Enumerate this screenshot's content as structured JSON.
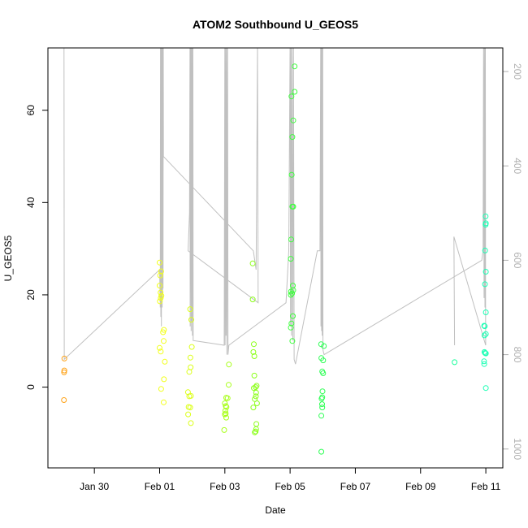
{
  "chart_data": {
    "type": "scatter",
    "title": "ATOM2 Southbound U_GEOS5",
    "xlabel": "Date",
    "ylabel": "U_GEOS5",
    "x_unit": "date",
    "xlim": [
      "2016-01-28T13:50",
      "2016-02-11T12:30"
    ],
    "ylim": [
      -17.5,
      73.5
    ],
    "x_ticks": [
      {
        "date": "2016-01-30",
        "label": "Jan 30"
      },
      {
        "date": "2016-02-01",
        "label": "Feb 01"
      },
      {
        "date": "2016-02-03",
        "label": "Feb 03"
      },
      {
        "date": "2016-02-05",
        "label": "Feb 05"
      },
      {
        "date": "2016-02-07",
        "label": "Feb 07"
      },
      {
        "date": "2016-02-09",
        "label": "Feb 09"
      },
      {
        "date": "2016-02-11",
        "label": "Feb 11"
      }
    ],
    "y_ticks": [
      0,
      20,
      40,
      60
    ],
    "y2_ticks": [
      200,
      400,
      600,
      800,
      1000
    ],
    "y2lim": [
      1040,
      150
    ],
    "y2_axis_color": "#b0b0b0",
    "pressure_trace_color": "#c0c0c0",
    "grid": false,
    "legend": "none",
    "color_encoding": "time gradient from orange to teal",
    "points": [
      {
        "x": "2016-01-29T01:55",
        "y": 6.2,
        "c": "#ffa41a"
      },
      {
        "x": "2016-01-29T01:55",
        "y": 3.6,
        "c": "#ffa41a"
      },
      {
        "x": "2016-01-29T01:45",
        "y": 3.2,
        "c": "#ffa41a"
      },
      {
        "x": "2016-01-29T01:35",
        "y": -2.8,
        "c": "#ffa41a"
      },
      {
        "x": "2016-02-01T00:00",
        "y": 27.0,
        "c": "#f2ff1a"
      },
      {
        "x": "2016-02-01T01:10",
        "y": 25.1,
        "c": "#f2ff1a"
      },
      {
        "x": "2016-02-01T00:25",
        "y": 24.2,
        "c": "#f2ff1a"
      },
      {
        "x": "2016-02-01T00:00",
        "y": 22.0,
        "c": "#f2ff1a"
      },
      {
        "x": "2016-02-01T00:45",
        "y": 20.5,
        "c": "#f2ff1a"
      },
      {
        "x": "2016-02-01T01:20",
        "y": 19.8,
        "c": "#f2ff1a"
      },
      {
        "x": "2016-02-01T00:50",
        "y": 19.3,
        "c": "#f2ff1a"
      },
      {
        "x": "2016-02-01T00:10",
        "y": 18.6,
        "c": "#f2ff1a"
      },
      {
        "x": "2016-02-01T03:10",
        "y": 12.4,
        "c": "#f2ff1a"
      },
      {
        "x": "2016-02-01T02:30",
        "y": 11.9,
        "c": "#f2ff1a"
      },
      {
        "x": "2016-02-01T03:00",
        "y": 10.0,
        "c": "#f2ff1a"
      },
      {
        "x": "2016-02-01T00:00",
        "y": 8.5,
        "c": "#f2ff1a"
      },
      {
        "x": "2016-02-01T00:50",
        "y": 7.7,
        "c": "#f2ff1a"
      },
      {
        "x": "2016-02-01T03:50",
        "y": 5.5,
        "c": "#f2ff1a"
      },
      {
        "x": "2016-02-01T03:10",
        "y": 1.7,
        "c": "#f2ff1a"
      },
      {
        "x": "2016-02-01T01:10",
        "y": -0.4,
        "c": "#f2ff1a"
      },
      {
        "x": "2016-02-01T03:00",
        "y": -3.3,
        "c": "#f2ff1a"
      },
      {
        "x": "2016-02-01T22:30",
        "y": 16.9,
        "c": "#dcff1a"
      },
      {
        "x": "2016-02-01T23:20",
        "y": 14.6,
        "c": "#dcff1a"
      },
      {
        "x": "2016-02-01T23:40",
        "y": 8.7,
        "c": "#dcff1a"
      },
      {
        "x": "2016-02-01T22:40",
        "y": 6.4,
        "c": "#dcff1a"
      },
      {
        "x": "2016-02-01T22:50",
        "y": 4.3,
        "c": "#dcff1a"
      },
      {
        "x": "2016-02-01T21:50",
        "y": 3.3,
        "c": "#dcff1a"
      },
      {
        "x": "2016-02-01T20:50",
        "y": -1.1,
        "c": "#dcff1a"
      },
      {
        "x": "2016-02-01T23:00",
        "y": -1.9,
        "c": "#dcff1a"
      },
      {
        "x": "2016-02-01T21:50",
        "y": -2.0,
        "c": "#dcff1a"
      },
      {
        "x": "2016-02-01T21:20",
        "y": -4.3,
        "c": "#dcff1a"
      },
      {
        "x": "2016-02-01T22:30",
        "y": -4.4,
        "c": "#dcff1a"
      },
      {
        "x": "2016-02-01T21:00",
        "y": -5.9,
        "c": "#dcff1a"
      },
      {
        "x": "2016-02-01T23:00",
        "y": -7.8,
        "c": "#dcff1a"
      },
      {
        "x": "2016-02-03T03:00",
        "y": 4.9,
        "c": "#a8ff1a"
      },
      {
        "x": "2016-02-03T02:50",
        "y": 0.5,
        "c": "#a8ff1a"
      },
      {
        "x": "2016-02-03T01:00",
        "y": -2.3,
        "c": "#a8ff1a"
      },
      {
        "x": "2016-02-03T02:00",
        "y": -2.4,
        "c": "#a8ff1a"
      },
      {
        "x": "2016-02-03T00:00",
        "y": -3.5,
        "c": "#a8ff1a"
      },
      {
        "x": "2016-02-03T00:40",
        "y": -4.1,
        "c": "#a8ff1a"
      },
      {
        "x": "2016-02-03T01:10",
        "y": -4.3,
        "c": "#a8ff1a"
      },
      {
        "x": "2016-02-03T00:20",
        "y": -5.1,
        "c": "#a8ff1a"
      },
      {
        "x": "2016-02-03T00:40",
        "y": -5.7,
        "c": "#a8ff1a"
      },
      {
        "x": "2016-02-03T00:00",
        "y": -5.9,
        "c": "#a8ff1a"
      },
      {
        "x": "2016-02-03T01:00",
        "y": -6.6,
        "c": "#a8ff1a"
      },
      {
        "x": "2016-02-02T23:30",
        "y": -9.3,
        "c": "#a8ff1a"
      },
      {
        "x": "2016-02-03T20:30",
        "y": 26.8,
        "c": "#8cff1a"
      },
      {
        "x": "2016-02-03T20:30",
        "y": 19.0,
        "c": "#8cff1a"
      },
      {
        "x": "2016-02-03T21:20",
        "y": 9.3,
        "c": "#8cff1a"
      },
      {
        "x": "2016-02-03T21:00",
        "y": 7.6,
        "c": "#8cff1a"
      },
      {
        "x": "2016-02-03T21:40",
        "y": 6.7,
        "c": "#8cff1a"
      },
      {
        "x": "2016-02-03T21:40",
        "y": 2.5,
        "c": "#8cff1a"
      },
      {
        "x": "2016-02-03T23:20",
        "y": 0.3,
        "c": "#8cff1a"
      },
      {
        "x": "2016-02-03T22:40",
        "y": 0.0,
        "c": "#8cff1a"
      },
      {
        "x": "2016-02-03T21:20",
        "y": -0.2,
        "c": "#8cff1a"
      },
      {
        "x": "2016-02-03T23:00",
        "y": -1.2,
        "c": "#8cff1a"
      },
      {
        "x": "2016-02-03T22:50",
        "y": -2.0,
        "c": "#8cff1a"
      },
      {
        "x": "2016-02-03T22:00",
        "y": -2.6,
        "c": "#8cff1a"
      },
      {
        "x": "2016-02-03T23:40",
        "y": -3.5,
        "c": "#8cff1a"
      },
      {
        "x": "2016-02-03T21:00",
        "y": -4.4,
        "c": "#8cff1a"
      },
      {
        "x": "2016-02-03T23:10",
        "y": -8.0,
        "c": "#8cff1a"
      },
      {
        "x": "2016-02-03T23:00",
        "y": -9.1,
        "c": "#8cff1a"
      },
      {
        "x": "2016-02-03T22:40",
        "y": -9.6,
        "c": "#8cff1a"
      },
      {
        "x": "2016-02-03T22:00",
        "y": -9.8,
        "c": "#8cff1a"
      },
      {
        "x": "2016-02-05T03:20",
        "y": 69.5,
        "c": "#3dff3d"
      },
      {
        "x": "2016-02-05T03:20",
        "y": 64.0,
        "c": "#3dff3d"
      },
      {
        "x": "2016-02-05T01:00",
        "y": 63.0,
        "c": "#3dff3d"
      },
      {
        "x": "2016-02-05T02:20",
        "y": 57.8,
        "c": "#3dff3d"
      },
      {
        "x": "2016-02-05T01:40",
        "y": 54.2,
        "c": "#3dff3d"
      },
      {
        "x": "2016-02-05T01:10",
        "y": 46.0,
        "c": "#3dff3d"
      },
      {
        "x": "2016-02-05T02:20",
        "y": 39.1,
        "c": "#3dff3d"
      },
      {
        "x": "2016-02-05T01:40",
        "y": 39.1,
        "c": "#3dff3d"
      },
      {
        "x": "2016-02-05T00:50",
        "y": 32.0,
        "c": "#3dff3d"
      },
      {
        "x": "2016-02-05T00:30",
        "y": 27.8,
        "c": "#3dff3d"
      },
      {
        "x": "2016-02-05T02:00",
        "y": 22.0,
        "c": "#3dff3d"
      },
      {
        "x": "2016-02-05T02:20",
        "y": 21.0,
        "c": "#3dff3d"
      },
      {
        "x": "2016-02-05T00:40",
        "y": 20.7,
        "c": "#3dff3d"
      },
      {
        "x": "2016-02-05T01:30",
        "y": 20.3,
        "c": "#3dff3d"
      },
      {
        "x": "2016-02-05T00:30",
        "y": 20.0,
        "c": "#3dff3d"
      },
      {
        "x": "2016-02-05T02:00",
        "y": 15.4,
        "c": "#3dff3d"
      },
      {
        "x": "2016-02-05T01:00",
        "y": 13.8,
        "c": "#3dff3d"
      },
      {
        "x": "2016-02-05T00:30",
        "y": 12.9,
        "c": "#3dff3d"
      },
      {
        "x": "2016-02-05T01:40",
        "y": 10.0,
        "c": "#3dff3d"
      },
      {
        "x": "2016-02-05T22:50",
        "y": 9.3,
        "c": "#2eff55"
      },
      {
        "x": "2016-02-06T00:50",
        "y": 8.9,
        "c": "#2eff55"
      },
      {
        "x": "2016-02-05T23:00",
        "y": 6.3,
        "c": "#2eff55"
      },
      {
        "x": "2016-02-06T00:20",
        "y": 5.8,
        "c": "#2eff55"
      },
      {
        "x": "2016-02-05T23:40",
        "y": 3.4,
        "c": "#2eff55"
      },
      {
        "x": "2016-02-06T00:20",
        "y": 3.0,
        "c": "#2eff55"
      },
      {
        "x": "2016-02-05T23:50",
        "y": -0.9,
        "c": "#2eff55"
      },
      {
        "x": "2016-02-05T23:40",
        "y": -2.2,
        "c": "#2eff55"
      },
      {
        "x": "2016-02-05T23:10",
        "y": -2.5,
        "c": "#2eff55"
      },
      {
        "x": "2016-02-05T23:30",
        "y": -3.7,
        "c": "#2eff55"
      },
      {
        "x": "2016-02-05T23:40",
        "y": -4.4,
        "c": "#2eff55"
      },
      {
        "x": "2016-02-05T23:00",
        "y": -6.2,
        "c": "#2eff55"
      },
      {
        "x": "2016-02-05T23:00",
        "y": -14.0,
        "c": "#2eff55"
      },
      {
        "x": "2016-02-10T01:00",
        "y": 5.4,
        "c": "#1aff9c"
      },
      {
        "x": "2016-02-10T23:50",
        "y": 37.0,
        "c": "#1affb4"
      },
      {
        "x": "2016-02-11T00:00",
        "y": 35.5,
        "c": "#1affb4"
      },
      {
        "x": "2016-02-10T23:50",
        "y": 35.2,
        "c": "#1affb4"
      },
      {
        "x": "2016-02-10T23:30",
        "y": 29.6,
        "c": "#1affb4"
      },
      {
        "x": "2016-02-11T00:00",
        "y": 25.0,
        "c": "#1affb4"
      },
      {
        "x": "2016-02-10T23:20",
        "y": 22.3,
        "c": "#1affb4"
      },
      {
        "x": "2016-02-11T00:00",
        "y": 16.2,
        "c": "#1affb4"
      },
      {
        "x": "2016-02-10T22:50",
        "y": 13.3,
        "c": "#1affb4"
      },
      {
        "x": "2016-02-10T23:10",
        "y": 13.2,
        "c": "#1affb4"
      },
      {
        "x": "2016-02-11T00:00",
        "y": 11.5,
        "c": "#1affb4"
      },
      {
        "x": "2016-02-10T23:00",
        "y": 11.2,
        "c": "#1affb4"
      },
      {
        "x": "2016-02-10T23:00",
        "y": 7.6,
        "c": "#1affb4"
      },
      {
        "x": "2016-02-10T23:30",
        "y": 7.4,
        "c": "#1affb4"
      },
      {
        "x": "2016-02-11T00:00",
        "y": 7.3,
        "c": "#1affb4"
      },
      {
        "x": "2016-02-10T22:40",
        "y": 5.6,
        "c": "#1affb4"
      },
      {
        "x": "2016-02-10T22:50",
        "y": 5.0,
        "c": "#1affb4"
      },
      {
        "x": "2016-02-11T00:00",
        "y": -0.2,
        "c": "#1affb4"
      }
    ],
    "pressure_trace": [
      [
        "2016-01-29T01:40",
        150
      ],
      [
        "2016-01-29T01:50",
        810
      ],
      [
        "2016-02-01T00:00",
        620
      ],
      [
        "2016-02-01T00:30",
        700
      ],
      [
        "2016-02-01T00:40",
        150
      ],
      [
        "2016-02-01T00:55",
        720
      ],
      [
        "2016-02-01T01:10",
        150
      ],
      [
        "2016-02-01T01:20",
        740
      ],
      [
        "2016-02-01T01:35",
        150
      ],
      [
        "2016-02-01T01:50",
        700
      ],
      [
        "2016-02-01T02:00",
        150
      ],
      [
        "2016-02-01T02:10",
        680
      ],
      [
        "2016-02-01T02:20",
        150
      ],
      [
        "2016-02-01T02:30",
        660
      ],
      [
        "2016-02-01T02:40",
        150
      ],
      [
        "2016-02-01T02:50",
        380
      ],
      [
        "2016-02-03T21:00",
        580
      ],
      [
        "2016-02-03T23:00",
        620
      ],
      [
        "2016-02-04T00:00",
        150
      ],
      [
        "2016-02-04T00:30",
        690
      ],
      [
        "2016-02-01T21:00",
        580
      ],
      [
        "2016-02-01T22:00",
        500
      ],
      [
        "2016-02-01T22:20",
        150
      ],
      [
        "2016-02-01T22:30",
        740
      ],
      [
        "2016-02-01T22:50",
        150
      ],
      [
        "2016-02-01T23:10",
        750
      ],
      [
        "2016-02-01T23:20",
        150
      ],
      [
        "2016-02-01T23:30",
        730
      ],
      [
        "2016-02-02T00:00",
        150
      ],
      [
        "2016-02-02T00:10",
        760
      ],
      [
        "2016-02-02T00:30",
        150
      ],
      [
        "2016-02-02T00:40",
        770
      ],
      [
        "2016-02-02T23:30",
        780
      ],
      [
        "2016-02-03T00:00",
        150
      ],
      [
        "2016-02-03T00:10",
        780
      ],
      [
        "2016-02-03T00:40",
        150
      ],
      [
        "2016-02-03T00:50",
        760
      ],
      [
        "2016-02-03T01:20",
        150
      ],
      [
        "2016-02-03T01:30",
        800
      ],
      [
        "2016-02-03T02:00",
        150
      ],
      [
        "2016-02-03T02:20",
        800
      ],
      [
        "2016-02-03T03:00",
        780
      ],
      [
        "2016-02-04T21:00",
        690
      ],
      [
        "2016-02-04T23:00",
        580
      ],
      [
        "2016-02-05T00:00",
        150
      ],
      [
        "2016-02-05T00:20",
        740
      ],
      [
        "2016-02-05T00:40",
        150
      ],
      [
        "2016-02-05T01:00",
        760
      ],
      [
        "2016-02-05T01:30",
        150
      ],
      [
        "2016-02-05T02:00",
        770
      ],
      [
        "2016-02-05T02:30",
        150
      ],
      [
        "2016-02-05T03:00",
        810
      ],
      [
        "2016-02-05T04:00",
        820
      ],
      [
        "2016-02-05T20:00",
        580
      ],
      [
        "2016-02-05T22:00",
        580
      ],
      [
        "2016-02-05T22:30",
        150
      ],
      [
        "2016-02-05T22:40",
        740
      ],
      [
        "2016-02-05T23:00",
        150
      ],
      [
        "2016-02-05T23:10",
        750
      ],
      [
        "2016-02-05T23:30",
        150
      ],
      [
        "2016-02-05T23:40",
        760
      ],
      [
        "2016-02-06T00:00",
        150
      ],
      [
        "2016-02-06T00:10",
        790
      ],
      [
        "2016-02-06T01:00",
        800
      ],
      [
        "2016-02-10T21:00",
        600
      ],
      [
        "2016-02-10T22:00",
        580
      ],
      [
        "2016-02-10T22:20",
        150
      ],
      [
        "2016-02-10T22:40",
        680
      ],
      [
        "2016-02-10T23:00",
        150
      ],
      [
        "2016-02-10T23:20",
        700
      ],
      [
        "2016-02-10T23:40",
        150
      ],
      [
        "2016-02-10T23:50",
        720
      ],
      [
        "2016-02-10T23:55",
        780
      ],
      [
        "2016-02-10T00:30",
        550
      ],
      [
        "2016-02-10T01:00",
        780
      ]
    ]
  }
}
